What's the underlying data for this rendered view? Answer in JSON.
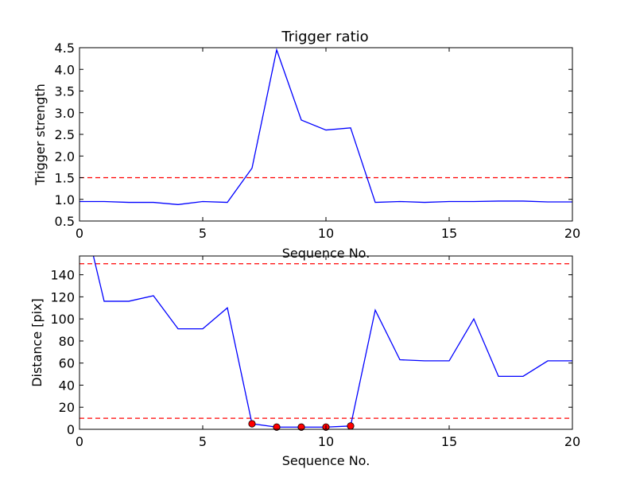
{
  "chart_data": [
    {
      "type": "line",
      "title": "Trigger ratio",
      "xlabel": "Sequence No.",
      "ylabel": "Trigger strength",
      "xlim": [
        0,
        20
      ],
      "ylim": [
        0.5,
        4.5
      ],
      "xticks": [
        "0",
        "5",
        "10",
        "15",
        "20"
      ],
      "yticks": [
        "0.5",
        "1.0",
        "1.5",
        "2.0",
        "2.5",
        "3.0",
        "3.5",
        "4.0",
        "4.5"
      ],
      "series": [
        {
          "color": "#0000ff",
          "style": "solid",
          "x": [
            0,
            1,
            2,
            3,
            4,
            5,
            6,
            7,
            8,
            9,
            10,
            11,
            12,
            13,
            14,
            15,
            16,
            17,
            18,
            19,
            20
          ],
          "values": [
            0.95,
            0.95,
            0.93,
            0.93,
            0.88,
            0.95,
            0.93,
            1.72,
            4.45,
            2.83,
            2.6,
            2.65,
            0.93,
            0.95,
            0.93,
            0.95,
            0.95,
            0.96,
            0.96,
            0.94,
            0.94
          ]
        }
      ],
      "reference_lines": [
        {
          "y": 1.5,
          "color": "#ff0000",
          "style": "dashed"
        }
      ],
      "grid": false
    },
    {
      "type": "line",
      "title": "",
      "xlabel": "Sequence No.",
      "ylabel": "Distance [pix]",
      "xlim": [
        0,
        20
      ],
      "ylim": [
        0,
        157
      ],
      "xticks": [
        "0",
        "5",
        "10",
        "15",
        "20"
      ],
      "yticks": [
        "0",
        "20",
        "40",
        "60",
        "80",
        "100",
        "120",
        "140"
      ],
      "series": [
        {
          "color": "#0000ff",
          "style": "solid",
          "x": [
            0,
            1,
            2,
            3,
            4,
            5,
            6,
            7,
            8,
            9,
            10,
            11,
            12,
            13,
            14,
            15,
            16,
            17,
            18,
            19,
            20
          ],
          "values": [
            210,
            116,
            116,
            121,
            91,
            91,
            110,
            5,
            2,
            2,
            2,
            3,
            108,
            63,
            62,
            62,
            100,
            48,
            48,
            62,
            62
          ]
        }
      ],
      "highlight_points": {
        "color": "#ff0000",
        "x": [
          7,
          8,
          9,
          10,
          11
        ],
        "values": [
          5,
          2,
          2,
          2,
          3
        ]
      },
      "reference_lines": [
        {
          "y": 150,
          "color": "#ff0000",
          "style": "dashed"
        },
        {
          "y": 10,
          "color": "#ff0000",
          "style": "dashed"
        }
      ],
      "grid": false
    }
  ]
}
